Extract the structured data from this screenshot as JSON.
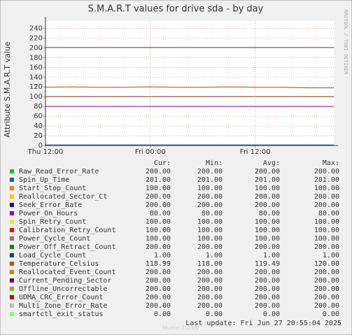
{
  "chart_data": {
    "type": "line",
    "title": "S.M.A.R.T values for drive sda - by day",
    "y_label": "Attribute S.M.A.R.T value",
    "side_text": "RRDTOOL / TOBI OETIKER",
    "footer_version": "Munin 2.0.69",
    "last_update": "Last update: Fri Jun 27 20:55:04 2025",
    "legend_headers": [
      "Cur:",
      "Min:",
      "Avg:",
      "Max:"
    ],
    "grid": true,
    "xlim": [
      0,
      33
    ],
    "xticks": [
      {
        "value": 0,
        "label": "Thu 12:00"
      },
      {
        "value": 12,
        "label": "Fri 00:00"
      },
      {
        "value": 24,
        "label": "Fri 12:00"
      }
    ],
    "ylim": [
      0,
      255
    ],
    "yticks": [
      0,
      20,
      40,
      60,
      80,
      100,
      120,
      140,
      160,
      180,
      200,
      220,
      240
    ],
    "x": [
      0,
      3,
      6,
      9,
      12,
      15,
      18,
      21,
      24,
      27,
      30,
      33
    ],
    "series": [
      {
        "name": "Raw_Read_Error_Rate",
        "color": "#00cc00",
        "values": [
          200,
          200,
          200,
          200,
          200,
          200,
          200,
          200,
          200,
          200,
          200,
          200
        ],
        "stats": [
          "200.00",
          "200.00",
          "200.00",
          "200.00"
        ]
      },
      {
        "name": "Spin_Up_Time",
        "color": "#0066b3",
        "values": [
          201,
          201,
          201,
          201,
          201,
          201,
          201,
          201,
          201,
          201,
          201,
          201
        ],
        "stats": [
          "201.00",
          "201.00",
          "201.00",
          "201.00"
        ]
      },
      {
        "name": "Start_Stop_Count",
        "color": "#ff8000",
        "values": [
          100,
          100,
          100,
          100,
          100,
          100,
          100,
          100,
          100,
          100,
          100,
          100
        ],
        "stats": [
          "100.00",
          "100.00",
          "100.00",
          "100.00"
        ]
      },
      {
        "name": "Reallocated_Sector_Ct",
        "color": "#ffcc00",
        "values": [
          200,
          200,
          200,
          200,
          200,
          200,
          200,
          200,
          200,
          200,
          200,
          200
        ],
        "stats": [
          "200.00",
          "200.00",
          "200.00",
          "200.00"
        ]
      },
      {
        "name": "Seek_Error_Rate",
        "color": "#330099",
        "values": [
          200,
          200,
          200,
          200,
          200,
          200,
          200,
          200,
          200,
          200,
          200,
          200
        ],
        "stats": [
          "200.00",
          "200.00",
          "200.00",
          "200.00"
        ]
      },
      {
        "name": "Power_On_Hours",
        "color": "#990099",
        "values": [
          80,
          80,
          80,
          80,
          80,
          80,
          80,
          80,
          80,
          80,
          80,
          80
        ],
        "stats": [
          "80.00",
          "80.00",
          "80.00",
          "80.00"
        ]
      },
      {
        "name": "Spin_Retry_Count",
        "color": "#ccff00",
        "values": [
          100,
          100,
          100,
          100,
          100,
          100,
          100,
          100,
          100,
          100,
          100,
          100
        ],
        "stats": [
          "100.00",
          "100.00",
          "100.00",
          "100.00"
        ]
      },
      {
        "name": "Calibration_Retry_Count",
        "color": "#ff0000",
        "values": [
          100,
          100,
          100,
          100,
          100,
          100,
          100,
          100,
          100,
          100,
          100,
          100
        ],
        "stats": [
          "100.00",
          "100.00",
          "100.00",
          "100.00"
        ]
      },
      {
        "name": "Power_Cycle_Count",
        "color": "#808080",
        "values": [
          100,
          100,
          100,
          100,
          100,
          100,
          100,
          100,
          100,
          100,
          100,
          100
        ],
        "stats": [
          "100.00",
          "100.00",
          "100.00",
          "100.00"
        ]
      },
      {
        "name": "Power_Off_Retract_Count",
        "color": "#008f00",
        "values": [
          200,
          200,
          200,
          200,
          200,
          200,
          200,
          200,
          200,
          200,
          200,
          200
        ],
        "stats": [
          "200.00",
          "200.00",
          "200.00",
          "200.00"
        ]
      },
      {
        "name": "Load_Cycle_Count",
        "color": "#00487d",
        "values": [
          1,
          1,
          1,
          1,
          1,
          1,
          1,
          1,
          1,
          1,
          1,
          1
        ],
        "stats": [
          "1.00",
          "1.00",
          "1.00",
          "1.00"
        ]
      },
      {
        "name": "Temperature_Celsius",
        "color": "#b35a00",
        "values": [
          119,
          120,
          119,
          119,
          120,
          119,
          119,
          120,
          119,
          119,
          118,
          118
        ],
        "stats": [
          "118.99",
          "118.00",
          "119.49",
          "120.00"
        ]
      },
      {
        "name": "Reallocated_Event_Count",
        "color": "#b38f00",
        "values": [
          200,
          200,
          200,
          200,
          200,
          200,
          200,
          200,
          200,
          200,
          200,
          200
        ],
        "stats": [
          "200.00",
          "200.00",
          "200.00",
          "200.00"
        ]
      },
      {
        "name": "Current_Pending_Sector",
        "color": "#6b006b",
        "values": [
          200,
          200,
          200,
          200,
          200,
          200,
          200,
          200,
          200,
          200,
          200,
          200
        ],
        "stats": [
          "200.00",
          "200.00",
          "200.00",
          "200.00"
        ]
      },
      {
        "name": "Offline_Uncorrectable",
        "color": "#8fb300",
        "values": [
          200,
          200,
          200,
          200,
          200,
          200,
          200,
          200,
          200,
          200,
          200,
          200
        ],
        "stats": [
          "200.00",
          "200.00",
          "200.00",
          "200.00"
        ]
      },
      {
        "name": "UDMA_CRC_Error_Count",
        "color": "#b30000",
        "values": [
          200,
          200,
          200,
          200,
          200,
          200,
          200,
          200,
          200,
          200,
          200,
          200
        ],
        "stats": [
          "200.00",
          "200.00",
          "200.00",
          "200.00"
        ]
      },
      {
        "name": "Multi_Zone_Error_Rate",
        "color": "#bebebe",
        "values": [
          200,
          200,
          200,
          200,
          200,
          200,
          200,
          200,
          200,
          200,
          200,
          200
        ],
        "stats": [
          "200.00",
          "200.00",
          "200.00",
          "200.00"
        ]
      },
      {
        "name": "smartctl_exit_status",
        "color": "#80ff80",
        "values": [
          0,
          0,
          0,
          0,
          0,
          0,
          0,
          0,
          0,
          0,
          0,
          0
        ],
        "stats": [
          "0.00",
          "0.00",
          "0.00",
          "0.00"
        ]
      }
    ]
  }
}
